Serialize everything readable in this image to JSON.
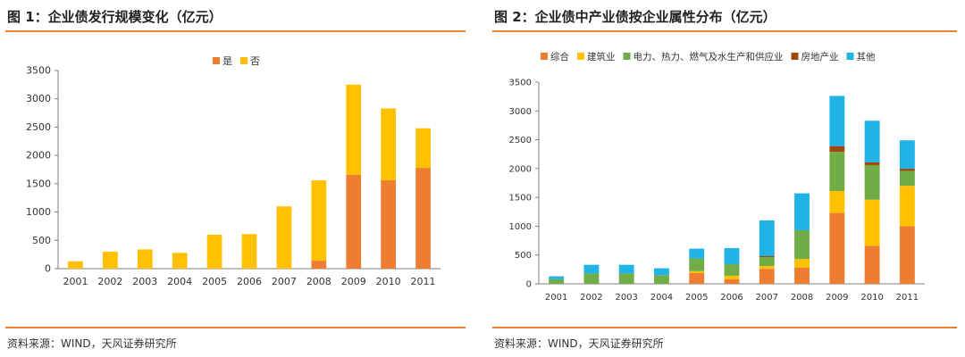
{
  "figures": [
    {
      "title": "图 1：企业债发行规模变化（亿元）",
      "source": "资料来源：WIND，天风证券研究所"
    },
    {
      "title": "图 2：企业债中产业债按企业属性分布（亿元）",
      "source": "资料来源：WIND，天风证券研究所"
    }
  ],
  "chart_data": [
    {
      "type": "bar",
      "stacked": true,
      "title": "企业债发行规模变化（亿元）",
      "categories": [
        "2001",
        "2002",
        "2003",
        "2004",
        "2005",
        "2006",
        "2007",
        "2008",
        "2009",
        "2010",
        "2011"
      ],
      "series": [
        {
          "name": "是",
          "color": "#ed7d31",
          "values": [
            0,
            0,
            0,
            0,
            0,
            0,
            0,
            140,
            1660,
            1560,
            1780
          ]
        },
        {
          "name": "否",
          "color": "#ffc000",
          "values": [
            130,
            300,
            340,
            280,
            600,
            610,
            1100,
            1420,
            1590,
            1270,
            700
          ]
        }
      ],
      "ylim": [
        0,
        3500
      ],
      "yticks": [
        0,
        500,
        1000,
        1500,
        2000,
        2500,
        3000,
        3500
      ],
      "legend_position": "top-center"
    },
    {
      "type": "bar",
      "stacked": true,
      "title": "企业债中产业债按企业属性分布（亿元）",
      "categories": [
        "2001",
        "2002",
        "2003",
        "2004",
        "2005",
        "2006",
        "2007",
        "2008",
        "2009",
        "2010",
        "2011"
      ],
      "series": [
        {
          "name": "综合",
          "color": "#ed7d31",
          "values": [
            0,
            0,
            0,
            0,
            190,
            80,
            260,
            280,
            1230,
            660,
            1000
          ]
        },
        {
          "name": "建筑业",
          "color": "#ffc000",
          "values": [
            0,
            0,
            0,
            0,
            30,
            60,
            50,
            150,
            380,
            800,
            700
          ]
        },
        {
          "name": "电力、热力、燃气及水生产和供应业",
          "color": "#70ad47",
          "values": [
            80,
            180,
            180,
            150,
            220,
            200,
            150,
            500,
            680,
            600,
            260
          ]
        },
        {
          "name": "房地产业",
          "color": "#9e480e",
          "values": [
            0,
            0,
            0,
            0,
            0,
            0,
            20,
            0,
            100,
            50,
            40
          ]
        },
        {
          "name": "其他",
          "color": "#1fb3e6",
          "values": [
            50,
            150,
            150,
            120,
            170,
            280,
            620,
            640,
            870,
            720,
            490
          ]
        }
      ],
      "ylim": [
        0,
        3500
      ],
      "yticks": [
        0,
        500,
        1000,
        1500,
        2000,
        2500,
        3000,
        3500
      ],
      "legend_position": "top"
    }
  ]
}
